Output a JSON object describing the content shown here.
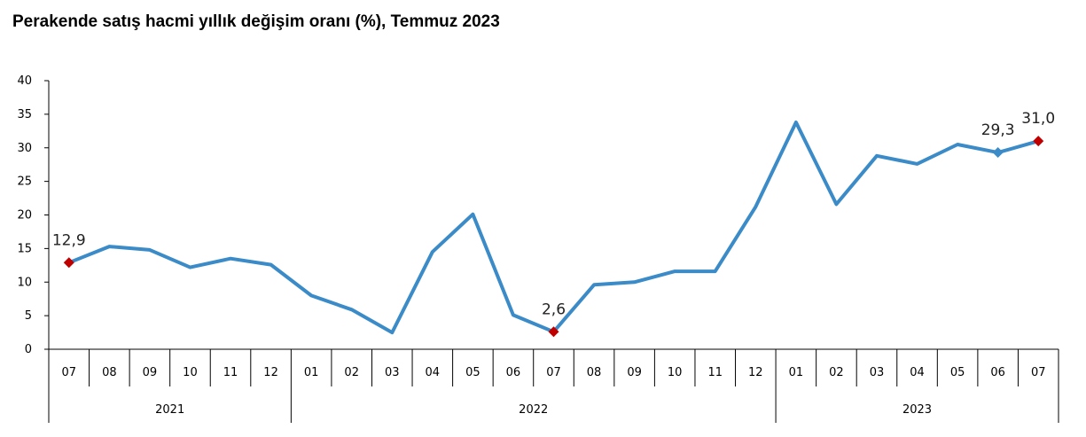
{
  "chart_data": {
    "type": "line",
    "title": "Perakende satış hacmi yıllık değişim oranı (%), Temmuz 2023",
    "xlabel": "",
    "ylabel": "",
    "ylim": [
      0,
      40
    ],
    "yticks": [
      0,
      5,
      10,
      15,
      20,
      25,
      30,
      35,
      40
    ],
    "categories": [
      "07",
      "08",
      "09",
      "10",
      "11",
      "12",
      "01",
      "02",
      "03",
      "04",
      "05",
      "06",
      "07",
      "08",
      "09",
      "10",
      "11",
      "12",
      "01",
      "02",
      "03",
      "04",
      "05",
      "06",
      "07"
    ],
    "years": [
      {
        "label": "2021",
        "start": 0,
        "end": 5
      },
      {
        "label": "2022",
        "start": 6,
        "end": 17
      },
      {
        "label": "2023",
        "start": 18,
        "end": 24
      }
    ],
    "series": [
      {
        "color": "#3a8bc7",
        "values": [
          12.9,
          15.3,
          14.8,
          12.2,
          13.5,
          12.6,
          8.0,
          5.9,
          2.5,
          14.5,
          20.1,
          5.1,
          2.6,
          9.6,
          10.0,
          11.6,
          11.6,
          21.2,
          33.8,
          21.6,
          28.8,
          27.6,
          30.5,
          29.3,
          31.0
        ]
      }
    ],
    "annotations": [
      {
        "index": 0,
        "text": "12,9",
        "marker": "diamond",
        "color": "#c00000"
      },
      {
        "index": 12,
        "text": "2,6",
        "marker": "diamond",
        "color": "#c00000"
      },
      {
        "index": 23,
        "text": "29,3",
        "marker": "diamond",
        "color": "#3a8bc7"
      },
      {
        "index": 24,
        "text": "31,0",
        "marker": "diamond",
        "color": "#c00000"
      }
    ],
    "grid": false
  }
}
